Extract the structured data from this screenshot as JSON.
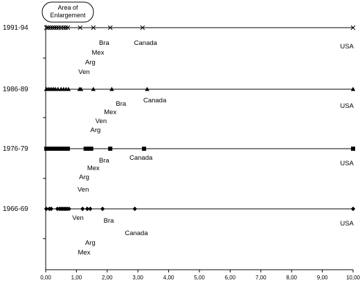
{
  "chart_data": {
    "type": "scatter",
    "xlim": [
      0,
      10
    ],
    "x_tick_labels": [
      "0,00",
      "1,00",
      "2,00",
      "3,00",
      "4,00",
      "5,00",
      "6,00",
      "7,00",
      "8,00",
      "9,00",
      "10,00"
    ],
    "grid": false,
    "annotation": "Area of\nEnlargement",
    "series": [
      {
        "name": "1991-94",
        "marker": "x",
        "x": [
          0.02,
          0.08,
          0.15,
          0.22,
          0.28,
          0.35,
          0.42,
          0.5,
          0.58,
          0.65,
          0.72,
          1.12,
          1.55,
          2.1,
          3.15,
          10.0
        ],
        "labels": [
          {
            "text": "Bra",
            "x": 1.9
          },
          {
            "text": "Mex",
            "x": 1.7
          },
          {
            "text": "Arg",
            "x": 1.45
          },
          {
            "text": "Ven",
            "x": 1.25
          },
          {
            "text": "Canada",
            "x": 3.25
          },
          {
            "text": "USA",
            "x": 9.8
          }
        ]
      },
      {
        "name": "1986-89",
        "marker": "triangle",
        "x": [
          0.02,
          0.08,
          0.14,
          0.2,
          0.26,
          0.32,
          0.4,
          0.5,
          0.58,
          0.66,
          0.74,
          1.1,
          1.15,
          1.55,
          2.15,
          3.3,
          10.0
        ],
        "labels": [
          {
            "text": "Bra",
            "x": 2.45
          },
          {
            "text": "Mex",
            "x": 2.1
          },
          {
            "text": "Ven",
            "x": 1.8
          },
          {
            "text": "Arg",
            "x": 1.62
          },
          {
            "text": "Canada",
            "x": 3.55
          },
          {
            "text": "USA",
            "x": 9.8
          }
        ]
      },
      {
        "name": "1976-79",
        "marker": "square",
        "x": [
          0.02,
          0.08,
          0.14,
          0.2,
          0.26,
          0.32,
          0.38,
          0.44,
          0.5,
          0.56,
          0.62,
          0.68,
          0.72,
          1.3,
          1.36,
          1.42,
          1.48,
          2.1,
          3.2,
          10.0
        ],
        "labels": [
          {
            "text": "Bra",
            "x": 1.9
          },
          {
            "text": "Mex",
            "x": 1.55
          },
          {
            "text": "Arg",
            "x": 1.25
          },
          {
            "text": "Ven",
            "x": 1.22
          },
          {
            "text": "Canada",
            "x": 3.1
          },
          {
            "text": "USA",
            "x": 9.8
          }
        ]
      },
      {
        "name": "1966-69",
        "marker": "diamond",
        "x": [
          0.02,
          0.12,
          0.18,
          0.38,
          0.45,
          0.5,
          0.55,
          0.6,
          0.65,
          0.7,
          0.76,
          1.2,
          1.35,
          1.45,
          1.85,
          2.9,
          10.0
        ],
        "labels": [
          {
            "text": "Bra",
            "x": 2.05
          },
          {
            "text": "Canada",
            "x": 2.95
          },
          {
            "text": "Arg",
            "x": 1.45
          },
          {
            "text": "Mex",
            "x": 1.25
          },
          {
            "text": "Ven",
            "x": 1.05
          },
          {
            "text": "USA",
            "x": 9.8
          }
        ]
      }
    ]
  }
}
